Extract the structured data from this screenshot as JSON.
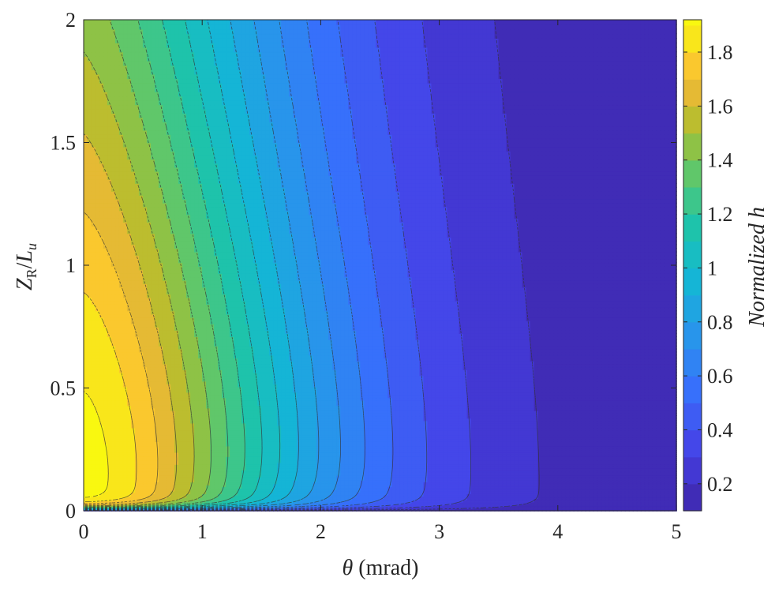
{
  "chart_data": {
    "type": "contour",
    "x": {
      "label_symbol": "θ",
      "label_unit": " (mrad)",
      "range": [
        0,
        5
      ],
      "ticks": [
        "0",
        "1",
        "2",
        "3",
        "4",
        "5"
      ]
    },
    "y": {
      "label_main": "Z",
      "label_sub": "R",
      "label_slash": "/",
      "label_main2": "L",
      "label_sub2": "u",
      "range": [
        0,
        2
      ],
      "ticks": [
        "0",
        "0.5",
        "1",
        "1.5",
        "2"
      ]
    },
    "colorbar": {
      "label_prefix": "Normalized ",
      "label_symbol": "h",
      "range": [
        0.1,
        1.92
      ],
      "ticks": [
        "0.2",
        "0.4",
        "0.6",
        "0.8",
        "1",
        "1.2",
        "1.4",
        "1.6",
        "1.8"
      ],
      "colormap": "parula"
    },
    "contour_style": "filled with dashed boundary lines",
    "peak": {
      "theta": 0.3,
      "z": 0.25,
      "value": 1.9
    },
    "colors": {
      "low": "#3e26a8",
      "mid": "#13beb8",
      "high": "#f9fb0e",
      "line": "#333333"
    }
  }
}
